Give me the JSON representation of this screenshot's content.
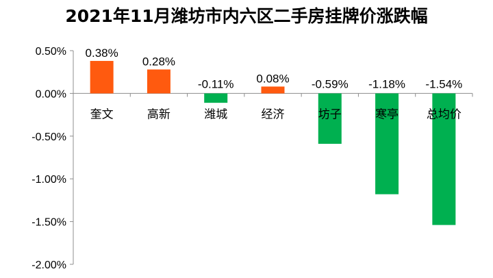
{
  "chart_data": {
    "type": "bar",
    "title": "2021年11月潍坊市内六区二手房挂牌价涨跌幅",
    "categories": [
      "奎文",
      "高新",
      "潍城",
      "经济",
      "坊子",
      "寒亭",
      "总均价"
    ],
    "values": [
      0.38,
      0.28,
      -0.11,
      0.08,
      -0.59,
      -1.18,
      -1.54
    ],
    "data_labels": [
      "0.38%",
      "0.28%",
      "-0.11%",
      "0.08%",
      "-0.59%",
      "-1.18%",
      "-1.54%"
    ],
    "y_ticks": [
      "0.50%",
      "0.00%",
      "-0.50%",
      "-1.00%",
      "-1.50%",
      "-2.00%"
    ],
    "y_tick_values": [
      0.5,
      0.0,
      -0.5,
      -1.0,
      -1.5,
      -2.0
    ],
    "ylim": [
      -2.0,
      0.5
    ],
    "xlabel": "",
    "ylabel": "",
    "grid": false,
    "colors": {
      "positive": "#FF5A0F",
      "negative": "#00B050",
      "axis": "#8C8C8C"
    }
  }
}
